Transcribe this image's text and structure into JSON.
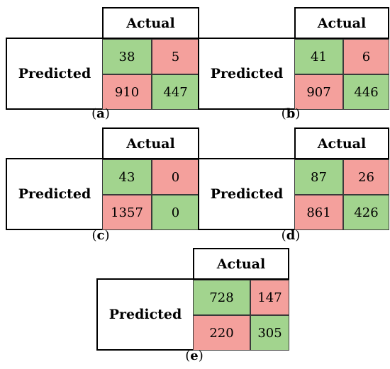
{
  "matrices": [
    {
      "header": "Actual",
      "row_label": "Predicted",
      "cells": [
        38,
        5,
        910,
        447
      ],
      "cell_status": [
        "correct",
        "incorrect",
        "incorrect",
        "correct"
      ],
      "caption": "a"
    },
    {
      "header": "Actual",
      "row_label": "Predicted",
      "cells": [
        41,
        6,
        907,
        446
      ],
      "cell_status": [
        "correct",
        "incorrect",
        "incorrect",
        "correct"
      ],
      "caption": "b"
    },
    {
      "header": "Actual",
      "row_label": "Predicted",
      "cells": [
        43,
        0,
        1357,
        0
      ],
      "cell_status": [
        "correct",
        "incorrect",
        "incorrect",
        "correct"
      ],
      "caption": "c"
    },
    {
      "header": "Actual",
      "row_label": "Predicted",
      "cells": [
        87,
        26,
        861,
        426
      ],
      "cell_status": [
        "correct",
        "incorrect",
        "incorrect",
        "correct"
      ],
      "caption": "d"
    },
    {
      "header": "Actual",
      "row_label": "Predicted",
      "cells": [
        728,
        147,
        220,
        305
      ],
      "cell_status": [
        "correct",
        "incorrect",
        "incorrect",
        "correct"
      ],
      "caption": "e"
    }
  ],
  "colors": {
    "correct": "#a2d48e",
    "incorrect": "#f4a09c"
  }
}
